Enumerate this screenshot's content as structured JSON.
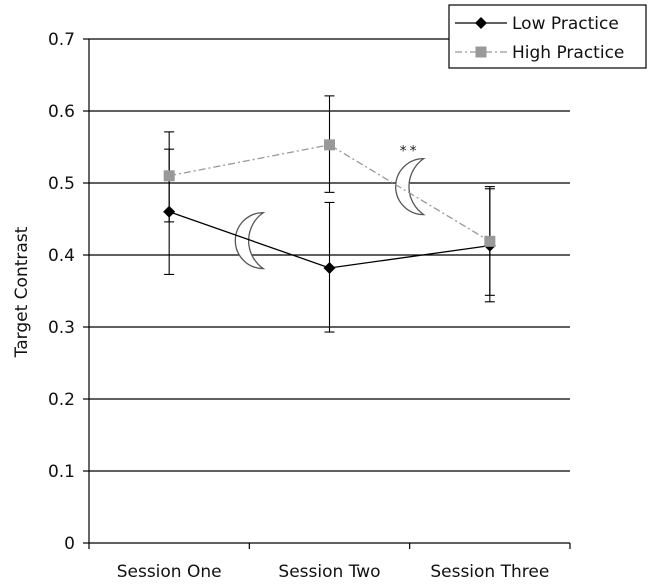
{
  "chart_data": {
    "type": "line",
    "categories": [
      "Session One",
      "Session Two",
      "Session Three"
    ],
    "ylabel": "Target Contrast",
    "xlabel": "",
    "title": "",
    "ylim": [
      0,
      0.7
    ],
    "yticks": [
      0,
      0.1,
      0.2,
      0.3,
      0.4,
      0.5,
      0.6,
      0.7
    ],
    "ytick_labels": [
      "0",
      "0.1",
      "0.2",
      "0.3",
      "0.4",
      "0.5",
      "0.6",
      "0.7"
    ],
    "grid": "horizontal",
    "legend_position": "top-right",
    "series": [
      {
        "name": "Low Practice",
        "values": [
          0.46,
          0.382,
          0.413
        ],
        "error_low": [
          0.373,
          0.293,
          0.335
        ],
        "error_high": [
          0.547,
          0.473,
          0.492
        ],
        "color": "#000000",
        "line_style": "solid",
        "marker": "diamond"
      },
      {
        "name": "High Practice",
        "values": [
          0.51,
          0.553,
          0.419
        ],
        "error_low": [
          0.446,
          0.487,
          0.344
        ],
        "error_high": [
          0.571,
          0.621,
          0.495
        ],
        "color": "#999999",
        "line_style": "dash-dot",
        "marker": "square"
      }
    ],
    "annotations": [
      {
        "text": "**",
        "x_between": [
          1,
          2
        ],
        "y": 0.545
      }
    ],
    "decorations": [
      {
        "icon": "crescent-moon-icon",
        "x_between": [
          0,
          1
        ],
        "y": 0.42
      },
      {
        "icon": "crescent-moon-icon",
        "x_between": [
          1,
          2
        ],
        "y": 0.495
      }
    ]
  }
}
